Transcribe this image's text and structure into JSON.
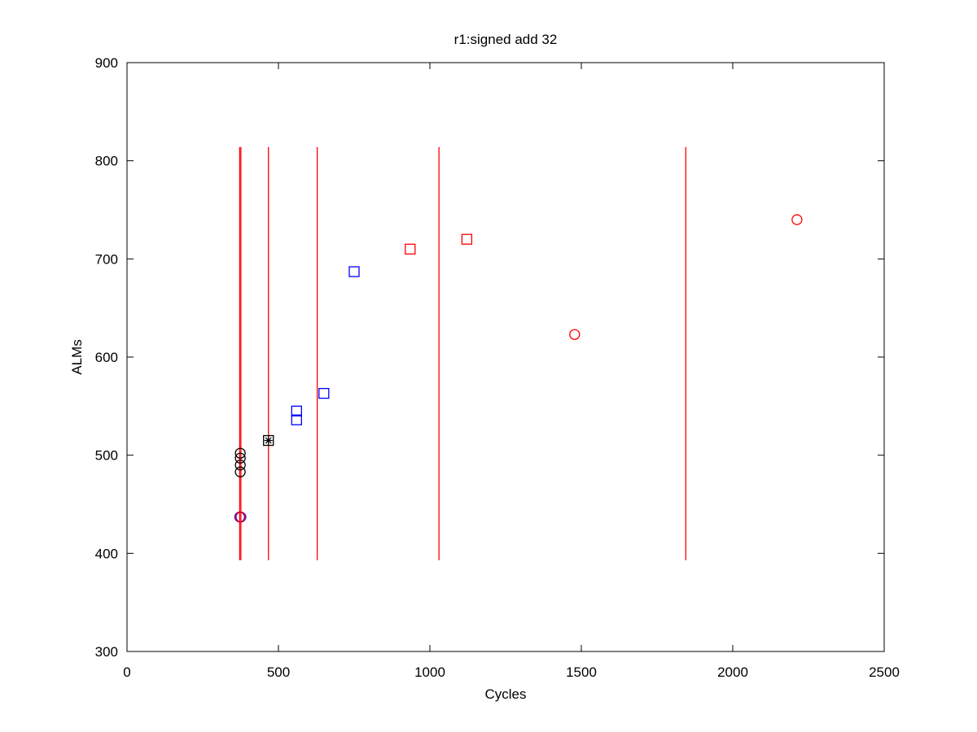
{
  "chart_data": {
    "type": "scatter",
    "title": "r1:signed add 32",
    "xlabel": "Cycles",
    "ylabel": "ALMs",
    "xlim": [
      0,
      2500
    ],
    "ylim": [
      300,
      900
    ],
    "xticks": [
      0,
      500,
      1000,
      1500,
      2000,
      2500
    ],
    "yticks": [
      300,
      400,
      500,
      600,
      700,
      800,
      900
    ],
    "grid": false,
    "colors": {
      "red": "#ff0000",
      "blue": "#0000ff",
      "black": "#000000"
    },
    "vertical_lines": {
      "color": "#ff0000",
      "y_range": [
        393,
        814
      ],
      "x": [
        372,
        376,
        467,
        628,
        1030,
        1845
      ]
    },
    "series": [
      {
        "marker": "circle",
        "color": "#000000",
        "points": [
          [
            374,
            483
          ],
          [
            374,
            490
          ],
          [
            374,
            497
          ],
          [
            374,
            502
          ],
          [
            374,
            437
          ]
        ]
      },
      {
        "marker": "circle",
        "color": "#0000ff",
        "points": [
          [
            372,
            437
          ],
          [
            376,
            437
          ]
        ]
      },
      {
        "marker": "circle",
        "color": "#ff0000",
        "points": [
          [
            374,
            437
          ],
          [
            1478,
            623
          ],
          [
            2212,
            740
          ]
        ]
      },
      {
        "marker": "square",
        "color": "#0000ff",
        "points": [
          [
            560,
            545
          ],
          [
            560,
            536
          ],
          [
            650,
            563
          ],
          [
            750,
            687
          ]
        ]
      },
      {
        "marker": "square",
        "color": "#ff0000",
        "points": [
          [
            935,
            710
          ],
          [
            1122,
            720
          ]
        ]
      },
      {
        "marker": "square",
        "color": "#000000",
        "points": [
          [
            467,
            515
          ]
        ]
      },
      {
        "marker": "star",
        "color": "#000000",
        "points": [
          [
            467,
            515
          ]
        ]
      }
    ]
  }
}
